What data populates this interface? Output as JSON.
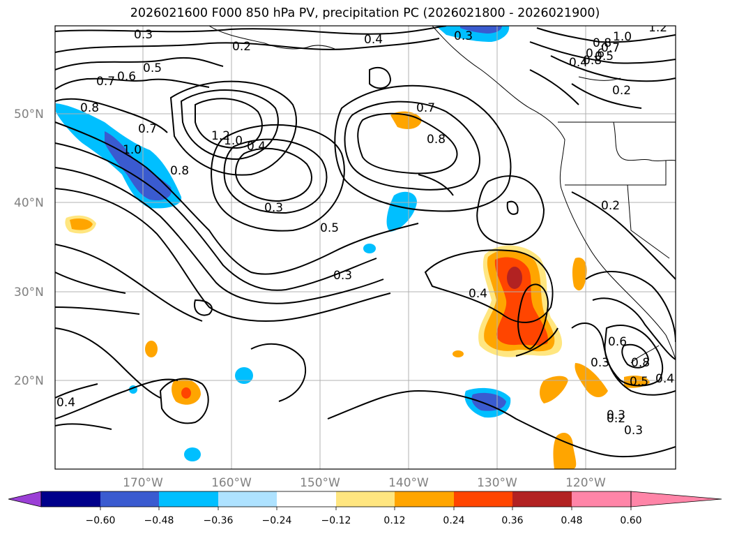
{
  "title": "2026021600 F000 850 hPa PV, precipitation PC (2026021800 - 2026021900)",
  "map": {
    "lat_labels": [
      "50°N",
      "40°N",
      "30°N",
      "20°N"
    ],
    "lon_labels": [
      "170°W",
      "160°W",
      "150°W",
      "140°W",
      "130°W",
      "120°W"
    ],
    "contour_labels": [
      "0.3",
      "0.2",
      "0.4",
      "0.3",
      "1.0",
      "1.2",
      "0.5",
      "0.7",
      "0.6",
      "0.8",
      "0.4",
      "0.8",
      "0.6",
      "0.5",
      "0.8",
      "0.7",
      "0.2",
      "0.7",
      "1.0",
      "0.8",
      "1.2",
      "1.0",
      "0.4",
      "0.7",
      "0.8",
      "0.3",
      "0.5",
      "0.3",
      "0.4",
      "0.2",
      "0.4",
      "0.3",
      "0.6",
      "0.8",
      "0.5",
      "0.4",
      "0.3",
      "0.2",
      "0.3"
    ]
  },
  "colorbar": {
    "ticks": [
      "−0.60",
      "−0.48",
      "−0.36",
      "−0.24",
      "−0.12",
      "0.12",
      "0.24",
      "0.36",
      "0.48",
      "0.60"
    ],
    "colors": [
      "#9b3fd6",
      "#00008b",
      "#3a5bd0",
      "#00bfff",
      "#aee2ff",
      "#ffffff",
      "#ffe680",
      "#ffa500",
      "#ff4500",
      "#b22222",
      "#ff85a8"
    ]
  }
}
